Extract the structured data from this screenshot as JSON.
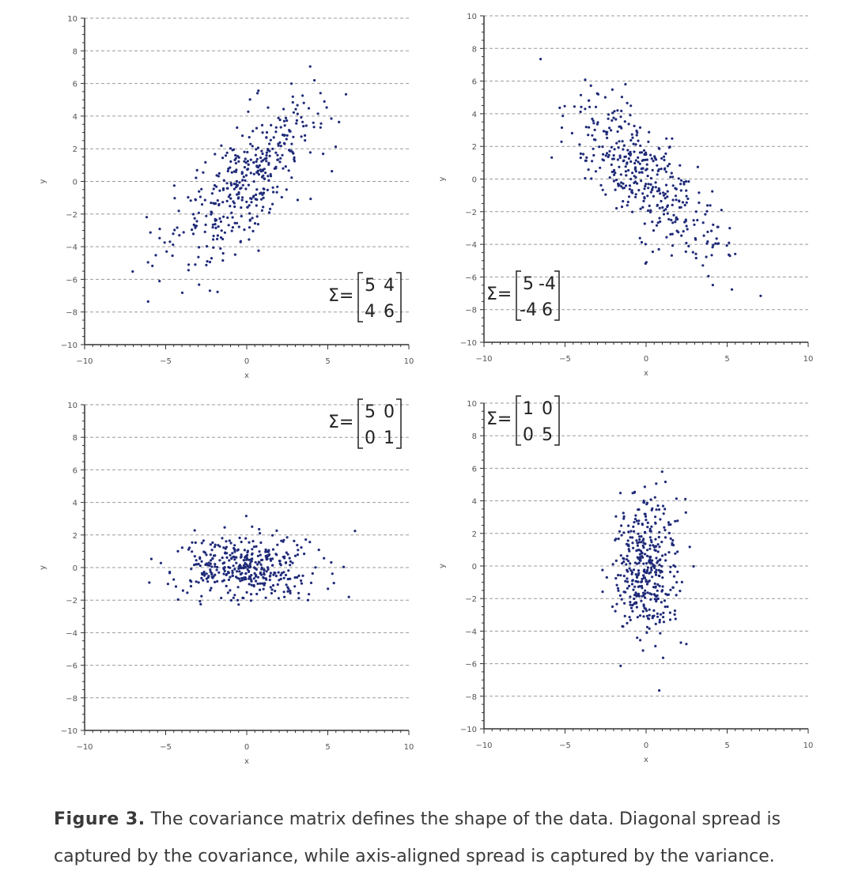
{
  "caption": {
    "label": "Figure 3.",
    "text": " The covariance matrix defines the shape of the data. Diagonal spread is captured by the covariance, while axis-aligned spread is captured by the variance."
  },
  "colors": {
    "points": "#1f2a78",
    "grid": "#9a9a9a",
    "axis": "#333333",
    "tick_text": "#555555"
  },
  "chart_data": [
    {
      "type": "scatter",
      "xlabel": "x",
      "ylabel": "y",
      "xlim": [
        -10,
        10
      ],
      "ylim": [
        -10,
        10
      ],
      "grid": "horizontal dashed",
      "xticks": [
        "−10",
        "−5",
        "0",
        "5",
        "10"
      ],
      "yticks": [
        "−10",
        "−8",
        "−6",
        "−4",
        "−2",
        "0",
        "2",
        "4",
        "6",
        "8",
        "10"
      ],
      "annotation": {
        "symbol": "Σ=",
        "matrix": [
          [
            "5",
            "4"
          ],
          [
            "4",
            "6"
          ]
        ],
        "placement": "lower-right"
      },
      "mean": [
        0,
        0
      ],
      "covariance": [
        [
          5,
          4
        ],
        [
          4,
          6
        ]
      ],
      "n_points": 400
    },
    {
      "type": "scatter",
      "xlabel": "x",
      "ylabel": "y",
      "xlim": [
        -10,
        10
      ],
      "ylim": [
        -10,
        10
      ],
      "grid": "horizontal dashed",
      "xticks": [
        "−10",
        "−5",
        "0",
        "5",
        "10"
      ],
      "yticks": [
        "−10",
        "−8",
        "−6",
        "−4",
        "−2",
        "0",
        "2",
        "4",
        "6",
        "8",
        "10"
      ],
      "annotation": {
        "symbol": "Σ=",
        "matrix": [
          [
            "5",
            "-4"
          ],
          [
            "-4",
            "6"
          ]
        ],
        "placement": "lower-left"
      },
      "mean": [
        0,
        0
      ],
      "covariance": [
        [
          5,
          -4
        ],
        [
          -4,
          6
        ]
      ],
      "n_points": 400
    },
    {
      "type": "scatter",
      "xlabel": "x",
      "ylabel": "y",
      "xlim": [
        -10,
        10
      ],
      "ylim": [
        -10,
        10
      ],
      "grid": "horizontal dashed",
      "xticks": [
        "−10",
        "−5",
        "0",
        "5",
        "10"
      ],
      "yticks": [
        "−10",
        "−8",
        "−6",
        "−4",
        "−2",
        "0",
        "2",
        "4",
        "6",
        "8",
        "10"
      ],
      "annotation": {
        "symbol": "Σ=",
        "matrix": [
          [
            "5",
            "0"
          ],
          [
            "0",
            "1"
          ]
        ],
        "placement": "upper-right"
      },
      "mean": [
        0,
        0
      ],
      "covariance": [
        [
          5,
          0
        ],
        [
          0,
          1
        ]
      ],
      "n_points": 400
    },
    {
      "type": "scatter",
      "xlabel": "x",
      "ylabel": "y",
      "xlim": [
        -10,
        10
      ],
      "ylim": [
        -10,
        10
      ],
      "grid": "horizontal dashed",
      "xticks": [
        "−10",
        "−5",
        "0",
        "5",
        "10"
      ],
      "yticks": [
        "−10",
        "−8",
        "−6",
        "−4",
        "−2",
        "0",
        "2",
        "4",
        "6",
        "8",
        "10"
      ],
      "annotation": {
        "symbol": "Σ=",
        "matrix": [
          [
            "1",
            "0"
          ],
          [
            "0",
            "5"
          ]
        ],
        "placement": "upper-left"
      },
      "mean": [
        0,
        0
      ],
      "covariance": [
        [
          1,
          0
        ],
        [
          0,
          5
        ]
      ],
      "n_points": 400
    }
  ]
}
